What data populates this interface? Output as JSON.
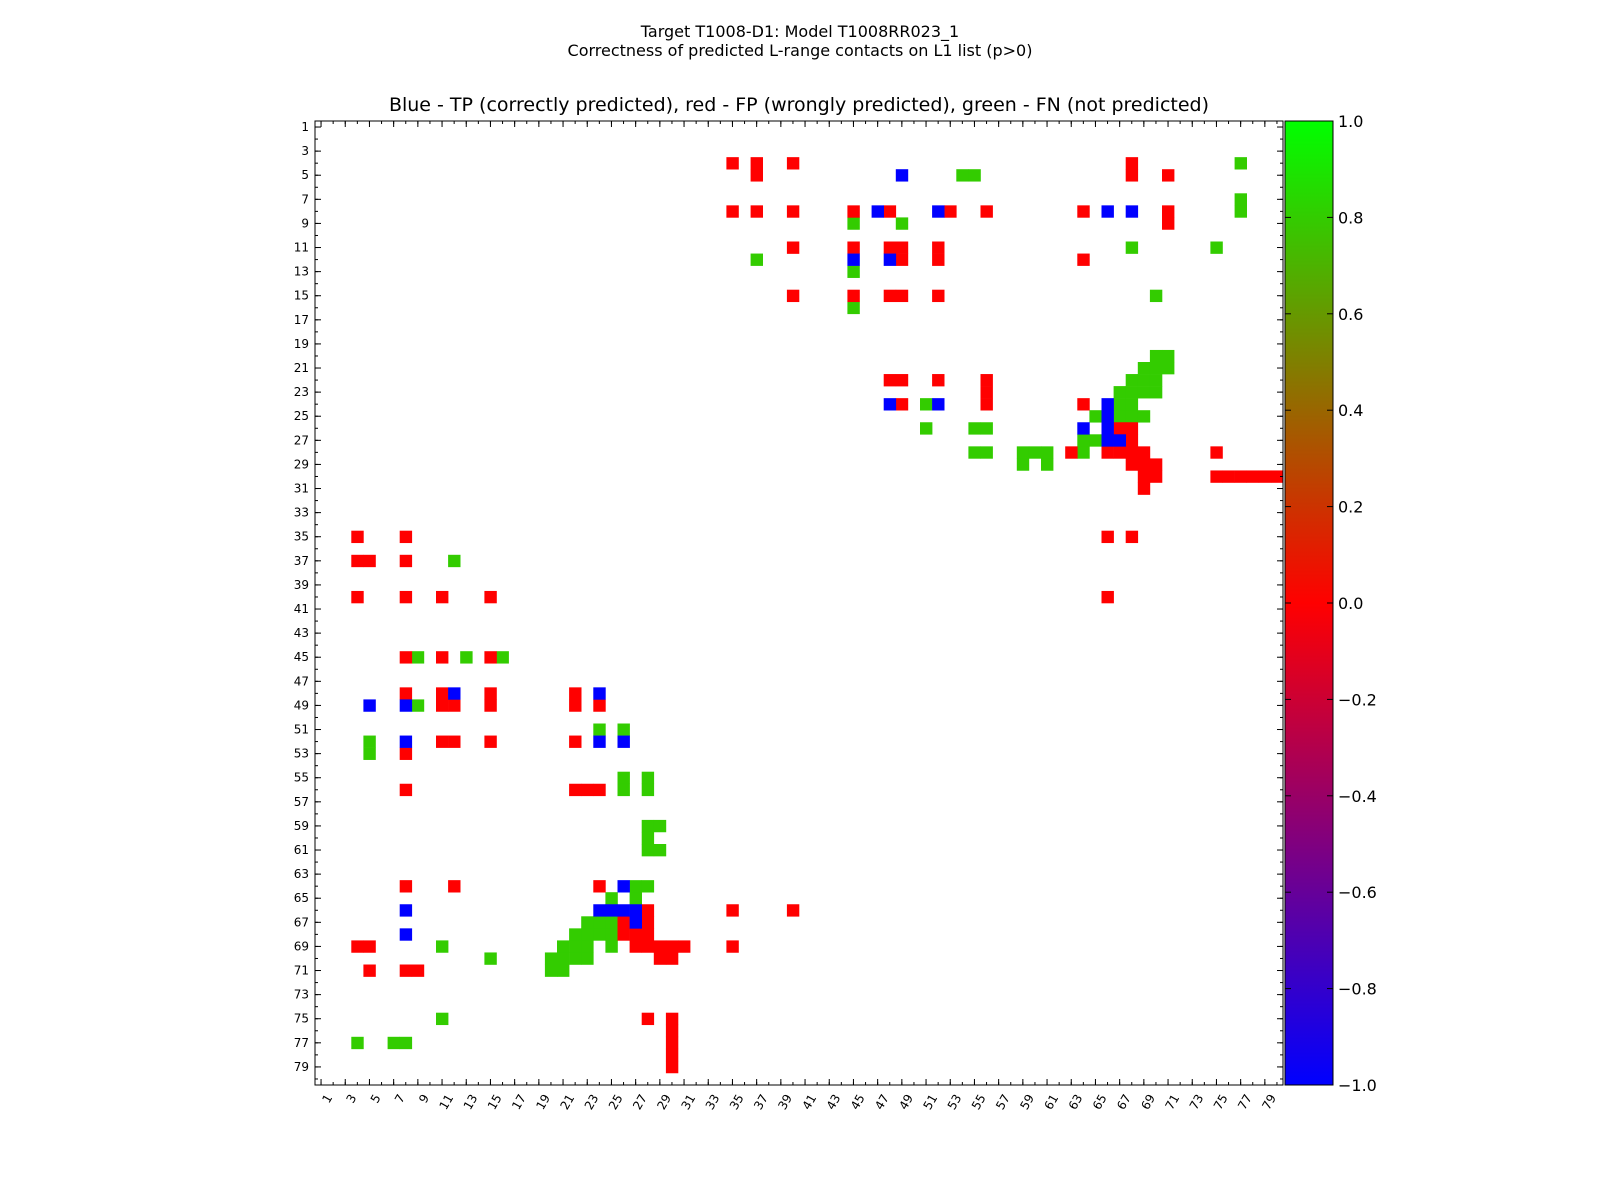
{
  "header": {
    "title_line1": "Target T1008-D1: Model T1008RR023_1",
    "title_line2": "Correctness of predicted L-range contacts on L1 list (p>0)"
  },
  "chart_data": {
    "type": "heatmap",
    "title": "Blue - TP (correctly predicted), red - FP (wrongly predicted), green - FN (not predicted)",
    "xlabel": "",
    "ylabel": "",
    "xlim": [
      1,
      80
    ],
    "ylim": [
      1,
      80
    ],
    "x_ticks": [
      1,
      3,
      5,
      7,
      9,
      11,
      13,
      15,
      17,
      19,
      21,
      23,
      25,
      27,
      29,
      31,
      33,
      35,
      37,
      39,
      41,
      43,
      45,
      47,
      49,
      51,
      53,
      55,
      57,
      59,
      61,
      63,
      65,
      67,
      69,
      71,
      73,
      75,
      77,
      79
    ],
    "y_ticks": [
      1,
      3,
      5,
      7,
      9,
      11,
      13,
      15,
      17,
      19,
      21,
      23,
      25,
      27,
      29,
      31,
      33,
      35,
      37,
      39,
      41,
      43,
      45,
      47,
      49,
      51,
      53,
      55,
      57,
      59,
      61,
      63,
      65,
      67,
      69,
      71,
      73,
      75,
      77,
      79
    ],
    "value_meaning": {
      "-1": "TP (blue)",
      "0": "FP (red)",
      "1": "FN (green)"
    },
    "colorbar": {
      "min": -1.0,
      "max": 1.0,
      "ticks": [
        "1.0",
        "0.8",
        "0.6",
        "0.4",
        "0.2",
        "0.0",
        "−0.2",
        "−0.4",
        "−0.6",
        "−0.8",
        "−1.0"
      ],
      "colors": [
        "#00ff00",
        "#33cc00",
        "#669900",
        "#996600",
        "#cc3300",
        "#ff0000",
        "#cc0033",
        "#990066",
        "#660099",
        "#3300cc",
        "#0000ff"
      ]
    },
    "cells": {
      "blue": [
        [
          49,
          5
        ],
        [
          47,
          8
        ],
        [
          52,
          8
        ],
        [
          66,
          8
        ],
        [
          68,
          8
        ],
        [
          45,
          12
        ],
        [
          48,
          12
        ],
        [
          48,
          24
        ],
        [
          52,
          24
        ],
        [
          66,
          24
        ],
        [
          66,
          25
        ],
        [
          64,
          26
        ],
        [
          66,
          26
        ],
        [
          66,
          27
        ],
        [
          67,
          27
        ],
        [
          5,
          49
        ],
        [
          8,
          49
        ],
        [
          12,
          48
        ],
        [
          24,
          48
        ],
        [
          8,
          52
        ],
        [
          24,
          52
        ],
        [
          26,
          52
        ],
        [
          26,
          64
        ],
        [
          8,
          66
        ],
        [
          24,
          66
        ],
        [
          25,
          66
        ],
        [
          26,
          66
        ],
        [
          27,
          66
        ],
        [
          27,
          67
        ],
        [
          8,
          68
        ]
      ],
      "red": [
        [
          35,
          4
        ],
        [
          37,
          4
        ],
        [
          40,
          4
        ],
        [
          37,
          5
        ],
        [
          68,
          4
        ],
        [
          68,
          5
        ],
        [
          71,
          5
        ],
        [
          35,
          8
        ],
        [
          37,
          8
        ],
        [
          40,
          8
        ],
        [
          45,
          8
        ],
        [
          48,
          8
        ],
        [
          53,
          8
        ],
        [
          56,
          8
        ],
        [
          64,
          8
        ],
        [
          71,
          8
        ],
        [
          71,
          9
        ],
        [
          40,
          11
        ],
        [
          45,
          11
        ],
        [
          48,
          11
        ],
        [
          49,
          11
        ],
        [
          52,
          11
        ],
        [
          49,
          12
        ],
        [
          52,
          12
        ],
        [
          64,
          12
        ],
        [
          40,
          15
        ],
        [
          45,
          15
        ],
        [
          48,
          15
        ],
        [
          49,
          15
        ],
        [
          52,
          15
        ],
        [
          48,
          22
        ],
        [
          49,
          22
        ],
        [
          52,
          22
        ],
        [
          56,
          22
        ],
        [
          56,
          23
        ],
        [
          56,
          24
        ],
        [
          49,
          24
        ],
        [
          64,
          24
        ],
        [
          67,
          26
        ],
        [
          68,
          26
        ],
        [
          67,
          27
        ],
        [
          68,
          27
        ],
        [
          63,
          28
        ],
        [
          66,
          28
        ],
        [
          67,
          28
        ],
        [
          68,
          28
        ],
        [
          69,
          28
        ],
        [
          75,
          28
        ],
        [
          68,
          29
        ],
        [
          69,
          29
        ],
        [
          70,
          29
        ],
        [
          69,
          30
        ],
        [
          70,
          30
        ],
        [
          75,
          30
        ],
        [
          76,
          30
        ],
        [
          77,
          30
        ],
        [
          78,
          30
        ],
        [
          79,
          30
        ],
        [
          80,
          30
        ],
        [
          69,
          31
        ],
        [
          66,
          35
        ],
        [
          68,
          35
        ],
        [
          66,
          40
        ],
        [
          4,
          35
        ],
        [
          8,
          35
        ],
        [
          4,
          37
        ],
        [
          5,
          37
        ],
        [
          8,
          37
        ],
        [
          4,
          40
        ],
        [
          8,
          40
        ],
        [
          11,
          40
        ],
        [
          15,
          40
        ],
        [
          8,
          45
        ],
        [
          11,
          45
        ],
        [
          15,
          45
        ],
        [
          8,
          48
        ],
        [
          11,
          48
        ],
        [
          15,
          48
        ],
        [
          22,
          48
        ],
        [
          11,
          49
        ],
        [
          12,
          49
        ],
        [
          15,
          49
        ],
        [
          22,
          49
        ],
        [
          24,
          49
        ],
        [
          8,
          53
        ],
        [
          11,
          52
        ],
        [
          12,
          52
        ],
        [
          15,
          52
        ],
        [
          22,
          52
        ],
        [
          8,
          56
        ],
        [
          22,
          56
        ],
        [
          23,
          56
        ],
        [
          24,
          56
        ],
        [
          8,
          64
        ],
        [
          12,
          64
        ],
        [
          24,
          64
        ],
        [
          35,
          66
        ],
        [
          40,
          66
        ],
        [
          28,
          66
        ],
        [
          26,
          67
        ],
        [
          28,
          67
        ],
        [
          4,
          69
        ],
        [
          5,
          69
        ],
        [
          35,
          69
        ],
        [
          26,
          68
        ],
        [
          27,
          68
        ],
        [
          28,
          68
        ],
        [
          27,
          69
        ],
        [
          28,
          69
        ],
        [
          29,
          69
        ],
        [
          30,
          69
        ],
        [
          31,
          69
        ],
        [
          29,
          70
        ],
        [
          30,
          70
        ],
        [
          5,
          71
        ],
        [
          8,
          71
        ],
        [
          9,
          71
        ],
        [
          28,
          75
        ],
        [
          30,
          75
        ],
        [
          30,
          76
        ],
        [
          30,
          77
        ],
        [
          30,
          78
        ],
        [
          30,
          79
        ]
      ],
      "green": [
        [
          54,
          5
        ],
        [
          55,
          5
        ],
        [
          77,
          4
        ],
        [
          77,
          7
        ],
        [
          77,
          8
        ],
        [
          45,
          9
        ],
        [
          49,
          9
        ],
        [
          68,
          11
        ],
        [
          75,
          11
        ],
        [
          37,
          12
        ],
        [
          45,
          13
        ],
        [
          70,
          15
        ],
        [
          45,
          16
        ],
        [
          70,
          20
        ],
        [
          71,
          20
        ],
        [
          69,
          21
        ],
        [
          70,
          21
        ],
        [
          71,
          21
        ],
        [
          68,
          22
        ],
        [
          69,
          22
        ],
        [
          70,
          22
        ],
        [
          67,
          23
        ],
        [
          68,
          23
        ],
        [
          69,
          23
        ],
        [
          70,
          23
        ],
        [
          67,
          24
        ],
        [
          68,
          24
        ],
        [
          51,
          24
        ],
        [
          65,
          25
        ],
        [
          67,
          25
        ],
        [
          68,
          25
        ],
        [
          69,
          25
        ],
        [
          51,
          26
        ],
        [
          55,
          26
        ],
        [
          56,
          26
        ],
        [
          65,
          27
        ],
        [
          64,
          27
        ],
        [
          55,
          28
        ],
        [
          56,
          28
        ],
        [
          64,
          28
        ],
        [
          59,
          28
        ],
        [
          60,
          28
        ],
        [
          61,
          28
        ],
        [
          59,
          29
        ],
        [
          61,
          29
        ],
        [
          12,
          37
        ],
        [
          9,
          45
        ],
        [
          13,
          45
        ],
        [
          16,
          45
        ],
        [
          9,
          49
        ],
        [
          24,
          51
        ],
        [
          26,
          51
        ],
        [
          5,
          52
        ],
        [
          5,
          53
        ],
        [
          26,
          55
        ],
        [
          26,
          56
        ],
        [
          28,
          55
        ],
        [
          28,
          56
        ],
        [
          28,
          59
        ],
        [
          29,
          59
        ],
        [
          28,
          60
        ],
        [
          28,
          61
        ],
        [
          29,
          61
        ],
        [
          27,
          64
        ],
        [
          28,
          64
        ],
        [
          25,
          65
        ],
        [
          27,
          65
        ],
        [
          23,
          67
        ],
        [
          24,
          67
        ],
        [
          25,
          67
        ],
        [
          22,
          68
        ],
        [
          23,
          68
        ],
        [
          24,
          68
        ],
        [
          25,
          68
        ],
        [
          11,
          69
        ],
        [
          21,
          69
        ],
        [
          22,
          69
        ],
        [
          23,
          69
        ],
        [
          25,
          69
        ],
        [
          20,
          70
        ],
        [
          21,
          70
        ],
        [
          22,
          70
        ],
        [
          23,
          70
        ],
        [
          15,
          70
        ],
        [
          20,
          71
        ],
        [
          21,
          71
        ],
        [
          11,
          75
        ],
        [
          4,
          77
        ],
        [
          7,
          77
        ],
        [
          8,
          77
        ]
      ]
    }
  }
}
